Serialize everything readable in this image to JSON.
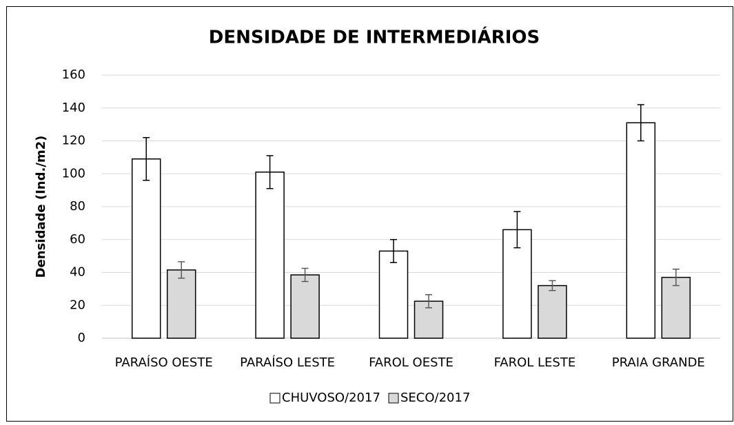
{
  "chart_data": {
    "type": "bar",
    "title": "DENSIDADE DE INTERMEDIÁRIOS",
    "y_label": "Densidade (Ind./m2)",
    "categories": [
      "PARAÍSO OESTE",
      "PARAÍSO LESTE",
      "FAROL OESTE",
      "FAROL LESTE",
      "PRAIA GRANDE"
    ],
    "series": [
      {
        "name": "CHUVOSO/2017",
        "color": "#ffffff",
        "error_color": "#000000",
        "values": [
          109,
          101,
          53,
          66,
          131
        ],
        "errors": [
          13,
          10,
          7,
          11,
          11
        ]
      },
      {
        "name": "SECO/2017",
        "color": "#d9d9d9",
        "error_color": "#595959",
        "values": [
          41.5,
          38.5,
          22.5,
          32,
          37
        ],
        "errors": [
          5,
          4,
          4,
          3,
          5
        ]
      }
    ],
    "ylim": [
      0,
      160
    ],
    "yticks": [
      0,
      20,
      40,
      60,
      80,
      100,
      120,
      140,
      160
    ],
    "grid": true,
    "legend": "bottom"
  }
}
